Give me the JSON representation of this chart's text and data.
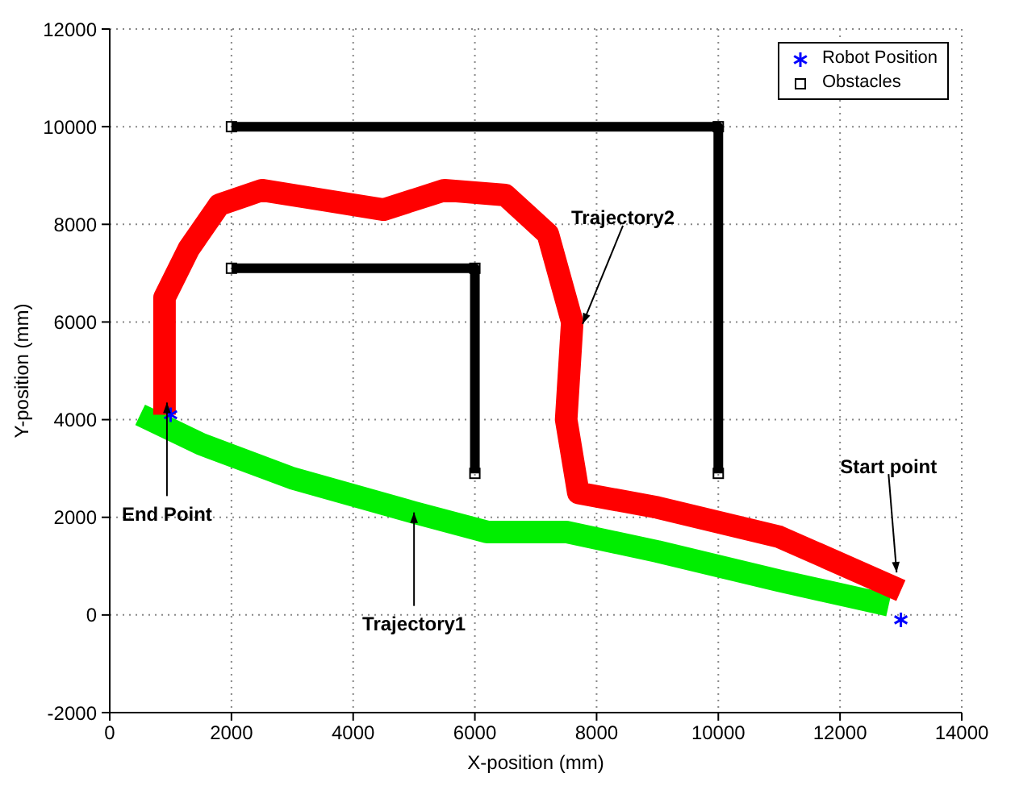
{
  "chart_data": {
    "type": "line",
    "xlabel": "X-position (mm)",
    "ylabel": "Y-position (mm)",
    "xlim": [
      0,
      14000
    ],
    "xticks": [
      0,
      2000,
      4000,
      6000,
      8000,
      10000,
      12000,
      14000
    ],
    "ylim": [
      -2000,
      12000
    ],
    "yticks": [
      -2000,
      0,
      2000,
      4000,
      6000,
      8000,
      10000,
      12000
    ],
    "grid": true,
    "legend": "top right",
    "series": [
      {
        "color": "#00ee00",
        "marker": "none",
        "x": [
          12800,
          11000,
          9000,
          7500,
          6200,
          5000,
          3000,
          1500,
          500
        ],
        "values": [
          200,
          700,
          1300,
          1700,
          1700,
          2100,
          2800,
          3500,
          4100
        ]
      },
      {
        "color": "#ff0000",
        "marker": "none",
        "x": [
          13000,
          11000,
          9000,
          7700,
          7500,
          7600,
          7200,
          6500,
          5500,
          4500,
          3500,
          2500,
          1800,
          1300,
          900,
          900
        ],
        "values": [
          500,
          1600,
          2200,
          2500,
          4000,
          6000,
          7800,
          8600,
          8700,
          8300,
          8500,
          8700,
          8400,
          7500,
          6500,
          4100
        ]
      },
      {
        "type": "scatter",
        "name": "Robot Position",
        "color": "#0000ff",
        "marker": "cross",
        "x": [
          13000,
          1000
        ],
        "values": [
          -100,
          4100
        ]
      },
      {
        "name": "Obstacles",
        "color": "#000000",
        "marker": "square",
        "x": [
          2000,
          10000,
          10000,
          null,
          2000,
          6000,
          6000
        ],
        "values": [
          10000,
          10000,
          2900,
          null,
          7100,
          7100,
          2900
        ]
      }
    ],
    "annotations": [
      {
        "text": "Trajectory2",
        "x": 7770,
        "y": 5960
      },
      {
        "text": "Trajectory1",
        "x": 5000,
        "y": 2100
      },
      {
        "text": "Start point",
        "x": 12930,
        "y": 870
      },
      {
        "text": "End Point",
        "x": 940,
        "y": 4350
      }
    ]
  }
}
